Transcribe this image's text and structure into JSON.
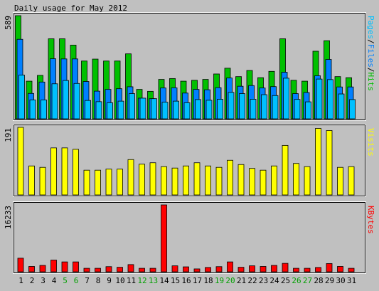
{
  "title": "Daily usage for May 2012",
  "chart_data": [
    {
      "type": "bar",
      "panel": "hits",
      "ylabel_max": "589",
      "legend": [
        "Pages",
        "/",
        "Files",
        "/",
        "Hits"
      ],
      "colors": {
        "hits": "#00c000",
        "files": "#0080ff",
        "pages": "#00c0ff",
        "visits": "#ffff00",
        "kbytes": "#ff0000",
        "weekend": "#00a000",
        "label": "#000000"
      },
      "ylim": [
        0,
        589
      ],
      "x": [
        1,
        2,
        3,
        4,
        5,
        6,
        7,
        8,
        9,
        10,
        11,
        12,
        13,
        14,
        15,
        16,
        17,
        18,
        19,
        20,
        21,
        22,
        23,
        24,
        25,
        26,
        27,
        28,
        29,
        30,
        31
      ],
      "series": [
        {
          "name": "Hits",
          "values": [
            589,
            215,
            248,
            457,
            457,
            421,
            330,
            341,
            330,
            330,
            371,
            168,
            157,
            225,
            230,
            215,
            220,
            225,
            256,
            289,
            241,
            276,
            235,
            271,
            457,
            220,
            215,
            386,
            446,
            241,
            235
          ]
        },
        {
          "name": "Files",
          "values": [
            454,
            145,
            210,
            343,
            342,
            342,
            213,
            158,
            168,
            172,
            183,
            118,
            115,
            176,
            177,
            147,
            168,
            166,
            178,
            233,
            186,
            190,
            176,
            184,
            266,
            144,
            150,
            246,
            339,
            182,
            182
          ]
        },
        {
          "name": "Pages",
          "values": [
            250,
            108,
            108,
            200,
            219,
            202,
            105,
            98,
            92,
            101,
            144,
            118,
            115,
            95,
            101,
            92,
            110,
            106,
            112,
            151,
            144,
            112,
            138,
            133,
            232,
            111,
            97,
            227,
            224,
            142,
            110
          ]
        }
      ]
    },
    {
      "type": "bar",
      "panel": "visits",
      "ylabel_max": "191",
      "legend": [
        "Visits"
      ],
      "ylim": [
        0,
        191
      ],
      "x": [
        1,
        2,
        3,
        4,
        5,
        6,
        7,
        8,
        9,
        10,
        11,
        12,
        13,
        14,
        15,
        16,
        17,
        18,
        19,
        20,
        21,
        22,
        23,
        24,
        25,
        26,
        27,
        28,
        29,
        30,
        31
      ],
      "series": [
        {
          "name": "Visits",
          "values": [
            191,
            82,
            78,
            133,
            133,
            129,
            70,
            70,
            73,
            73,
            100,
            87,
            91,
            80,
            76,
            82,
            91,
            82,
            78,
            98,
            86,
            75,
            70,
            82,
            140,
            89,
            80,
            188,
            182,
            78,
            80
          ]
        }
      ]
    },
    {
      "type": "bar",
      "panel": "kbytes",
      "ylabel_max": "16233",
      "legend": [
        "KBytes"
      ],
      "ylim": [
        0,
        16233
      ],
      "x": [
        1,
        2,
        3,
        4,
        5,
        6,
        7,
        8,
        9,
        10,
        11,
        12,
        13,
        14,
        15,
        16,
        17,
        18,
        19,
        20,
        21,
        22,
        23,
        24,
        25,
        26,
        27,
        28,
        29,
        30,
        31
      ],
      "series": [
        {
          "name": "KBytes",
          "values": [
            3300,
            1300,
            1550,
            2850,
            2400,
            2400,
            850,
            850,
            1250,
            1100,
            1750,
            850,
            850,
            16233,
            1450,
            1200,
            700,
            1050,
            1250,
            2400,
            1100,
            1450,
            1300,
            1550,
            2050,
            850,
            850,
            1050,
            2000,
            1300,
            850
          ]
        }
      ]
    }
  ],
  "weekend_days": [
    5,
    6,
    12,
    13,
    19,
    20,
    26,
    27
  ]
}
